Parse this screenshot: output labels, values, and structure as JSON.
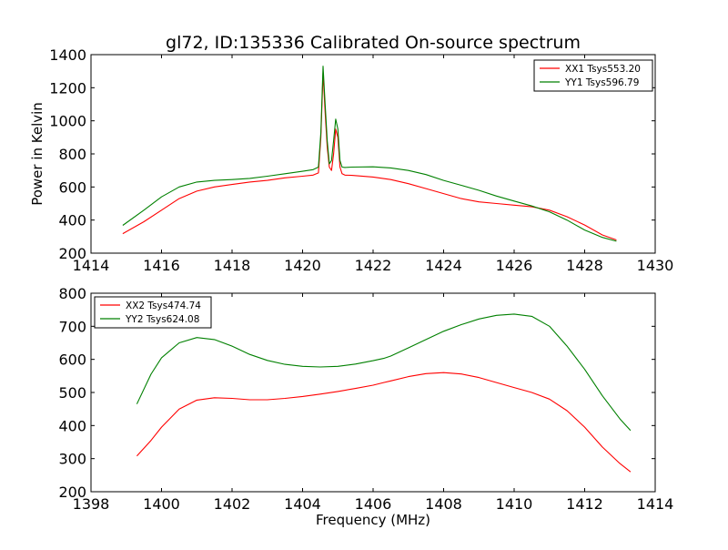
{
  "figure": {
    "title": "gl72, ID:135336 Calibrated On-source spectrum"
  },
  "chart_data": [
    {
      "type": "line",
      "title": "gl72, ID:135336 Calibrated On-source spectrum",
      "xlabel": "",
      "ylabel": "Power in Kelvin",
      "xlim": [
        1414,
        1430
      ],
      "ylim": [
        200,
        1400
      ],
      "xticks": [
        "1414",
        "1416",
        "1418",
        "1420",
        "1422",
        "1424",
        "1426",
        "1428",
        "1430"
      ],
      "yticks": [
        "200",
        "400",
        "600",
        "800",
        "1000",
        "1200",
        "1400"
      ],
      "grid": false,
      "legend": "top-right",
      "series": [
        {
          "name": "XX1 Tsys553.20",
          "color": "#ff0000",
          "x": [
            1414.9,
            1415.5,
            1416.0,
            1416.5,
            1417.0,
            1417.5,
            1418.0,
            1418.5,
            1419.0,
            1419.5,
            1420.0,
            1420.3,
            1420.45,
            1420.52,
            1420.58,
            1420.64,
            1420.7,
            1420.76,
            1420.82,
            1420.88,
            1420.94,
            1421.0,
            1421.06,
            1421.12,
            1421.2,
            1421.4,
            1422.0,
            1422.5,
            1423.0,
            1423.5,
            1424.0,
            1424.5,
            1425.0,
            1425.5,
            1426.0,
            1426.5,
            1427.0,
            1427.5,
            1428.0,
            1428.5,
            1428.9
          ],
          "y": [
            318,
            390,
            460,
            530,
            575,
            600,
            615,
            630,
            640,
            655,
            665,
            672,
            685,
            900,
            1290,
            1050,
            840,
            720,
            700,
            800,
            950,
            900,
            720,
            680,
            672,
            670,
            660,
            645,
            620,
            590,
            560,
            530,
            510,
            500,
            490,
            480,
            460,
            420,
            370,
            310,
            280
          ]
        },
        {
          "name": "YY1 Tsys596.79",
          "color": "#008000",
          "x": [
            1414.9,
            1415.5,
            1416.0,
            1416.5,
            1417.0,
            1417.5,
            1418.0,
            1418.5,
            1419.0,
            1419.5,
            1420.0,
            1420.3,
            1420.45,
            1420.52,
            1420.58,
            1420.64,
            1420.7,
            1420.76,
            1420.82,
            1420.88,
            1420.94,
            1421.0,
            1421.06,
            1421.12,
            1421.2,
            1421.4,
            1422.0,
            1422.5,
            1423.0,
            1423.5,
            1424.0,
            1424.5,
            1425.0,
            1425.5,
            1426.0,
            1426.5,
            1427.0,
            1427.5,
            1428.0,
            1428.5,
            1428.9
          ],
          "y": [
            368,
            460,
            540,
            600,
            630,
            640,
            645,
            652,
            665,
            680,
            695,
            705,
            720,
            930,
            1330,
            1100,
            880,
            740,
            760,
            880,
            1010,
            950,
            760,
            720,
            718,
            720,
            722,
            715,
            700,
            675,
            640,
            610,
            580,
            545,
            515,
            485,
            450,
            400,
            340,
            295,
            272
          ]
        }
      ]
    },
    {
      "type": "line",
      "title": "",
      "xlabel": "Frequency (MHz)",
      "ylabel": "",
      "xlim": [
        1398,
        1414
      ],
      "ylim": [
        200,
        800
      ],
      "xticks": [
        "1398",
        "1400",
        "1402",
        "1404",
        "1406",
        "1408",
        "1410",
        "1412",
        "1414"
      ],
      "yticks": [
        "200",
        "300",
        "400",
        "500",
        "600",
        "700",
        "800"
      ],
      "grid": false,
      "legend": "top-left",
      "series": [
        {
          "name": "XX2 Tsys474.74",
          "color": "#ff0000",
          "x": [
            1399.3,
            1399.7,
            1400.0,
            1400.5,
            1401.0,
            1401.5,
            1402.0,
            1402.5,
            1403.0,
            1403.5,
            1404.0,
            1404.5,
            1405.0,
            1405.5,
            1406.0,
            1406.3,
            1406.5,
            1407.0,
            1407.5,
            1408.0,
            1408.5,
            1409.0,
            1409.5,
            1410.0,
            1410.5,
            1411.0,
            1411.5,
            1412.0,
            1412.5,
            1413.0,
            1413.3
          ],
          "y": [
            308,
            355,
            395,
            450,
            477,
            484,
            482,
            478,
            478,
            482,
            488,
            495,
            503,
            512,
            522,
            530,
            535,
            548,
            557,
            560,
            556,
            545,
            530,
            515,
            500,
            480,
            445,
            395,
            335,
            285,
            260
          ]
        },
        {
          "name": "YY2 Tsys624.08",
          "color": "#008000",
          "x": [
            1399.3,
            1399.7,
            1400.0,
            1400.5,
            1401.0,
            1401.5,
            1402.0,
            1402.5,
            1403.0,
            1403.5,
            1404.0,
            1404.5,
            1405.0,
            1405.5,
            1406.0,
            1406.3,
            1406.5,
            1407.0,
            1407.5,
            1408.0,
            1408.5,
            1409.0,
            1409.5,
            1410.0,
            1410.5,
            1411.0,
            1411.5,
            1412.0,
            1412.5,
            1413.0,
            1413.3
          ],
          "y": [
            465,
            555,
            605,
            650,
            666,
            660,
            640,
            615,
            597,
            585,
            579,
            577,
            579,
            586,
            596,
            603,
            610,
            635,
            660,
            685,
            705,
            722,
            733,
            737,
            730,
            700,
            640,
            570,
            490,
            420,
            385
          ]
        }
      ]
    }
  ]
}
